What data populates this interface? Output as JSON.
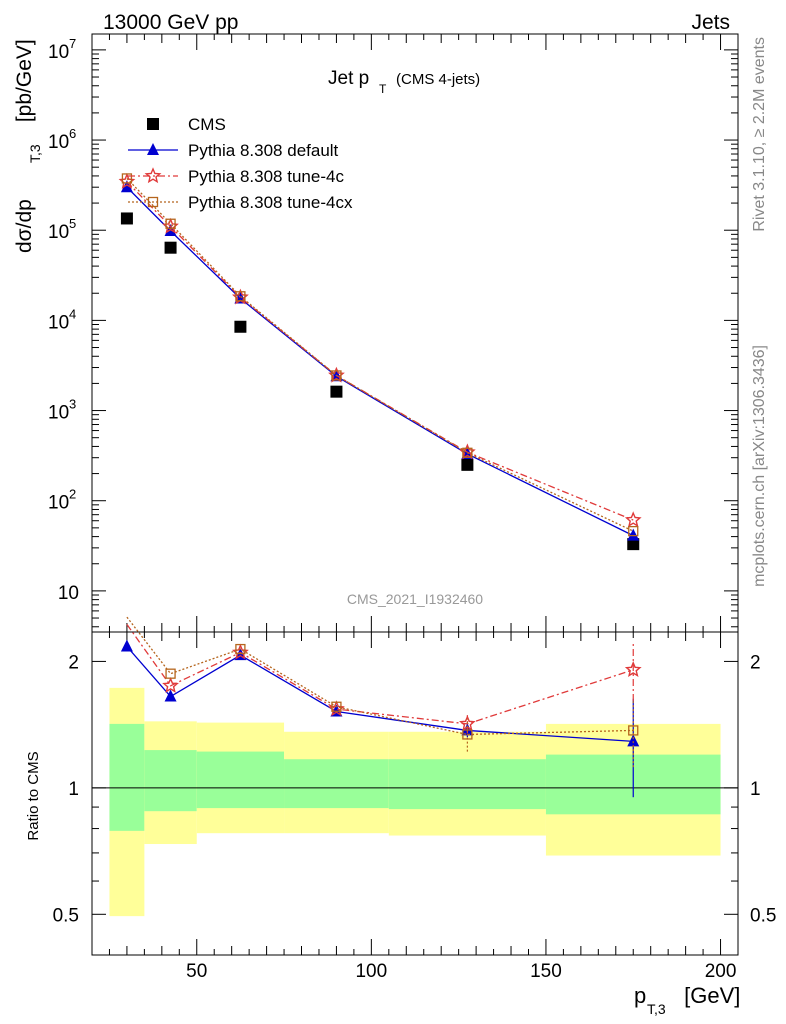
{
  "header": {
    "left": "13000 GeV pp",
    "right": "Jets"
  },
  "side_text": {
    "rivet": "Rivet 3.1.10, ≥ 2.2M events",
    "mcplots": "mcplots.cern.ch [arXiv:1306.3436]"
  },
  "chart_data": {
    "type": "line",
    "title_main": "Jet p",
    "title_sub": "T",
    "title_note": "(CMS 4-jets)",
    "watermark": "CMS_2021_I1932460",
    "ylabel": {
      "main": "dσ/dp",
      "sub": "T,3",
      "tail": " [pb/GeV]"
    },
    "xlabel": {
      "main": "p",
      "sub": "T,3",
      "tail": " [GeV]"
    },
    "ratio_ylabel": "Ratio to CMS",
    "xlim": [
      20,
      205
    ],
    "ylim": [
      3.5,
      15000000
    ],
    "ratio_ylim": [
      0.4,
      2.35
    ],
    "yscale": "log",
    "x_ticks": [
      "50",
      "100",
      "150",
      "200"
    ],
    "y_ticks": [
      {
        "value": 10,
        "base": "10",
        "exp": ""
      },
      {
        "value": 100,
        "base": "10",
        "exp": "2"
      },
      {
        "value": 1000,
        "base": "10",
        "exp": "3"
      },
      {
        "value": 10000,
        "base": "10",
        "exp": "4"
      },
      {
        "value": 100000,
        "base": "10",
        "exp": "5"
      },
      {
        "value": 1000000,
        "base": "10",
        "exp": "6"
      },
      {
        "value": 10000000,
        "base": "10",
        "exp": "7"
      }
    ],
    "ratio_ticks": [
      "0.5",
      "1",
      "2"
    ],
    "bins": [
      {
        "lo": 25,
        "hi": 35
      },
      {
        "lo": 35,
        "hi": 50
      },
      {
        "lo": 50,
        "hi": 75
      },
      {
        "lo": 75,
        "hi": 105
      },
      {
        "lo": 105,
        "hi": 150
      },
      {
        "lo": 150,
        "hi": 200
      }
    ],
    "band_stat": [
      [
        0.79,
        1.42
      ],
      [
        0.88,
        1.23
      ],
      [
        0.895,
        1.22
      ],
      [
        0.895,
        1.17
      ],
      [
        0.89,
        1.17
      ],
      [
        0.865,
        1.2
      ]
    ],
    "band_total": [
      [
        0.495,
        1.73
      ],
      [
        0.735,
        1.44
      ],
      [
        0.78,
        1.43
      ],
      [
        0.78,
        1.36
      ],
      [
        0.77,
        1.36
      ],
      [
        0.69,
        1.42
      ]
    ],
    "series": [
      {
        "name": "CMS",
        "color": "#000000",
        "marker": "square",
        "dash": "",
        "x": [
          30,
          42.5,
          62.5,
          90,
          127.5,
          175
        ],
        "values": [
          135000,
          64000,
          8500,
          1620,
          250,
          33
        ],
        "ratio": [
          1,
          1,
          1,
          1,
          1,
          1
        ],
        "ratio_err": [
          0,
          0,
          0,
          0,
          0,
          0
        ]
      },
      {
        "name": "Pythia 8.308 default",
        "color": "#0000d0",
        "marker": "triangle",
        "dash": "",
        "x": [
          30,
          42.5,
          62.5,
          90,
          127.5,
          175
        ],
        "values": [
          300000,
          98000,
          17500,
          2400,
          330,
          41
        ],
        "ratio": [
          2.17,
          1.65,
          2.07,
          1.52,
          1.37,
          1.29
        ],
        "ratio_err": [
          0,
          0,
          0,
          0,
          0.05,
          0.34
        ]
      },
      {
        "name": "Pythia 8.308 tune-4c",
        "color": "#e03a3a",
        "marker": "star",
        "dash": "7,3,2,3",
        "x": [
          30,
          42.5,
          62.5,
          90,
          127.5,
          175
        ],
        "values": [
          345000,
          110000,
          18000,
          2450,
          345,
          61
        ],
        "ratio": [
          2.45,
          1.75,
          2.1,
          1.54,
          1.42,
          1.91
        ],
        "ratio_err": [
          0,
          0,
          0,
          0,
          0.07,
          0.3
        ]
      },
      {
        "name": "Pythia 8.308 tune-4cx",
        "color": "#b5651d",
        "marker": "opensquare",
        "dash": "2,2",
        "x": [
          30,
          42.5,
          62.5,
          90,
          127.5,
          175
        ],
        "values": [
          375000,
          118000,
          18500,
          2450,
          340,
          46
        ],
        "ratio": [
          2.55,
          1.87,
          2.14,
          1.56,
          1.34,
          1.37
        ],
        "ratio_err": [
          0,
          0,
          0,
          0,
          0.12,
          0.25
        ]
      }
    ]
  }
}
